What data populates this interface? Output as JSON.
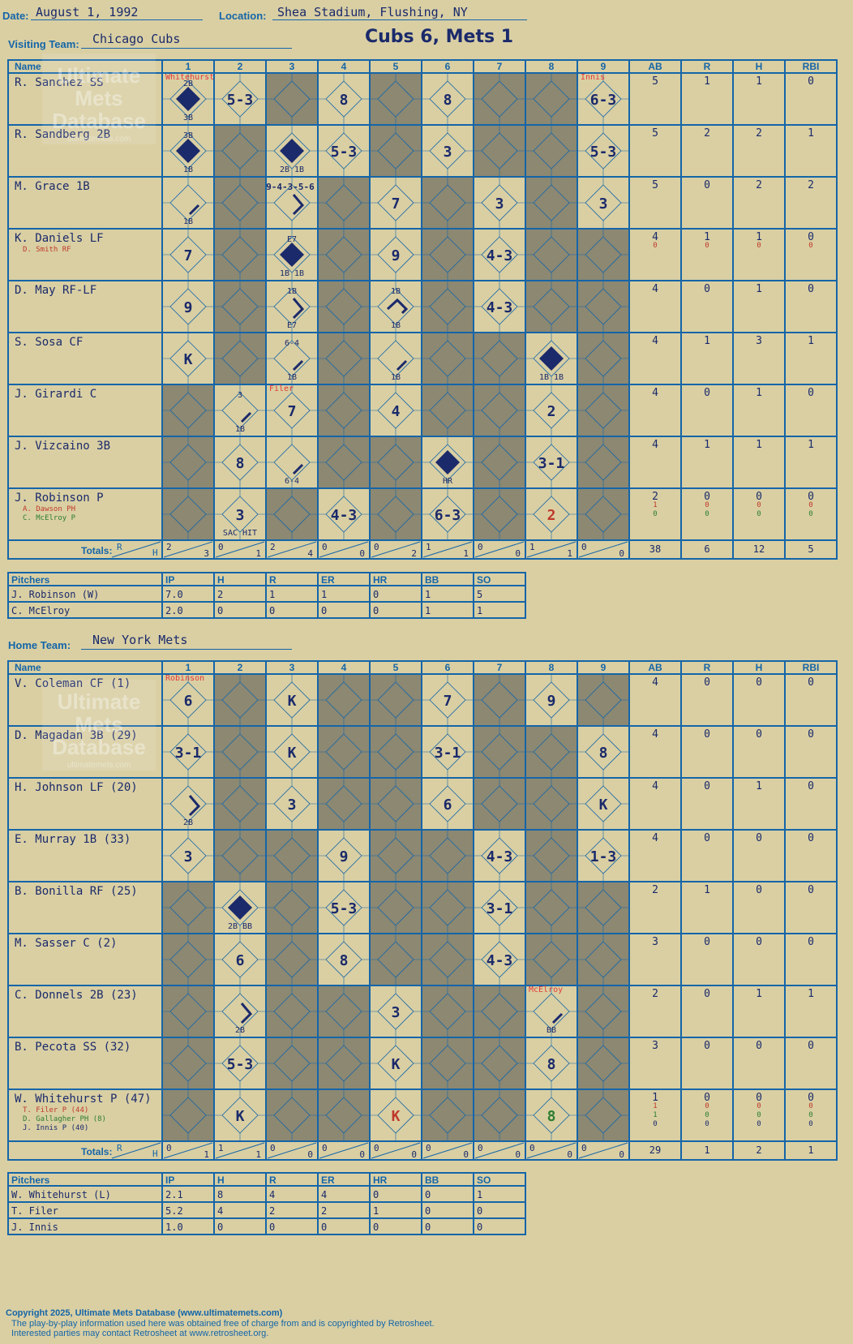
{
  "header": {
    "date_label": "Date:",
    "date": "August 1, 1992",
    "location_label": "Location:",
    "location": "Shea Stadium, Flushing, NY",
    "visiting_label": "Visiting Team:",
    "visiting_team": "Chicago Cubs",
    "home_label": "Home Team:",
    "home_team": "New York Mets",
    "result": "Cubs 6, Mets 1"
  },
  "watermark": [
    "Ultimate",
    "Mets",
    "Database",
    "ultimatemets.com"
  ],
  "grid_headers": [
    "Name",
    "1",
    "2",
    "3",
    "4",
    "5",
    "6",
    "7",
    "8",
    "9",
    "AB",
    "R",
    "H",
    "RBI"
  ],
  "totals_label": "Totals:",
  "totals_r": "R",
  "totals_h": "H",
  "pitcher_headers": [
    "Pitchers",
    "IP",
    "H",
    "R",
    "ER",
    "HR",
    "BB",
    "SO"
  ],
  "colors": {
    "bg": "#d9cfa3",
    "grid": "#1565a8",
    "shade": "#8c8872",
    "ink": "#1b2a6b",
    "red": "#c0392b",
    "green": "#2e7d32",
    "pitch_change": "#e53935"
  },
  "visitors": {
    "batters": [
      {
        "name": "R. Sanchez SS",
        "subs": [],
        "stats": [
          [
            "5",
            "1",
            "1",
            "0"
          ]
        ],
        "shade": [
          2,
          4,
          6,
          7
        ],
        "plays": [
          {
            "inn": 0,
            "type": "run",
            "tl": "",
            "note": "Whitehurst",
            "notes": [
              "2B",
              "3B"
            ]
          },
          {
            "inn": 1,
            "type": "out",
            "text": "5-3"
          },
          {
            "inn": 3,
            "type": "out",
            "text": "8"
          },
          {
            "inn": 5,
            "type": "out",
            "text": "8"
          },
          {
            "inn": 8,
            "type": "out",
            "text": "6-3",
            "note": "Innis"
          }
        ]
      },
      {
        "name": "R. Sandberg 2B",
        "subs": [],
        "stats": [
          [
            "5",
            "2",
            "2",
            "1"
          ]
        ],
        "shade": [
          1,
          4,
          6,
          7
        ],
        "plays": [
          {
            "inn": 0,
            "type": "run",
            "notes": [
              "3B",
              "1B"
            ]
          },
          {
            "inn": 2,
            "type": "run",
            "notes": [
              "2B 1B"
            ]
          },
          {
            "inn": 3,
            "type": "out",
            "text": "5-3"
          },
          {
            "inn": 5,
            "type": "out",
            "text": "3"
          },
          {
            "inn": 8,
            "type": "out",
            "text": "5-3"
          }
        ]
      },
      {
        "name": "M. Grace 1B",
        "subs": [],
        "stats": [
          [
            "5",
            "0",
            "2",
            "2"
          ]
        ],
        "shade": [
          1,
          3,
          5,
          7
        ],
        "plays": [
          {
            "inn": 0,
            "type": "hit1",
            "notes": [
              "1B"
            ]
          },
          {
            "inn": 2,
            "type": "hit2",
            "text": "9-4-3-5-6"
          },
          {
            "inn": 4,
            "type": "out",
            "text": "7"
          },
          {
            "inn": 6,
            "type": "out",
            "text": "3"
          },
          {
            "inn": 8,
            "type": "out",
            "text": "3"
          }
        ]
      },
      {
        "name": "K. Daniels LF",
        "subs": [
          {
            "name": "D. Smith RF",
            "color": "red"
          }
        ],
        "stats": [
          [
            "4",
            "1",
            "1",
            "0"
          ],
          [
            "0",
            "0",
            "0",
            "0"
          ]
        ],
        "shade": [
          1,
          3,
          5,
          7,
          8
        ],
        "plays": [
          {
            "inn": 0,
            "type": "out",
            "text": "7"
          },
          {
            "inn": 2,
            "type": "run",
            "notes": [
              "E7",
              "1B 1B"
            ]
          },
          {
            "inn": 4,
            "type": "out",
            "text": "9"
          },
          {
            "inn": 6,
            "type": "out",
            "text": "4-3"
          }
        ]
      },
      {
        "name": "D. May RF-LF",
        "subs": [],
        "stats": [
          [
            "4",
            "0",
            "1",
            "0"
          ]
        ],
        "shade": [
          1,
          3,
          5,
          7,
          8
        ],
        "plays": [
          {
            "inn": 0,
            "type": "out",
            "text": "9"
          },
          {
            "inn": 2,
            "type": "hit2",
            "notes": [
              "1B",
              "E7"
            ]
          },
          {
            "inn": 4,
            "type": "hit3",
            "notes": [
              "1B",
              "1B"
            ]
          },
          {
            "inn": 6,
            "type": "out",
            "text": "4-3"
          }
        ]
      },
      {
        "name": "S. Sosa CF",
        "subs": [],
        "stats": [
          [
            "4",
            "1",
            "3",
            "1"
          ]
        ],
        "shade": [
          1,
          3,
          5,
          6,
          8
        ],
        "plays": [
          {
            "inn": 0,
            "type": "out",
            "text": "K"
          },
          {
            "inn": 2,
            "type": "hit1",
            "notes": [
              "6-4",
              "1B"
            ]
          },
          {
            "inn": 4,
            "type": "hit1",
            "notes": [
              "1B"
            ]
          },
          {
            "inn": 7,
            "type": "run",
            "notes": [
              "1B 1B"
            ]
          }
        ]
      },
      {
        "name": "J. Girardi C",
        "subs": [],
        "stats": [
          [
            "4",
            "0",
            "1",
            "0"
          ]
        ],
        "shade": [
          0,
          3,
          5,
          6,
          8
        ],
        "plays": [
          {
            "inn": 1,
            "type": "hit1",
            "notes": [
              "3",
              "1B"
            ]
          },
          {
            "inn": 2,
            "type": "out",
            "text": "7",
            "note": "Filer"
          },
          {
            "inn": 4,
            "type": "out",
            "text": "4"
          },
          {
            "inn": 7,
            "type": "out",
            "text": "2"
          }
        ]
      },
      {
        "name": "J. Vizcaino 3B",
        "subs": [],
        "stats": [
          [
            "4",
            "1",
            "1",
            "1"
          ]
        ],
        "shade": [
          0,
          3,
          4,
          6,
          8
        ],
        "plays": [
          {
            "inn": 1,
            "type": "out",
            "text": "8"
          },
          {
            "inn": 2,
            "type": "hit1",
            "notes": [
              "6-4"
            ]
          },
          {
            "inn": 5,
            "type": "run",
            "notes": [
              "HR"
            ]
          },
          {
            "inn": 7,
            "type": "out",
            "text": "3-1"
          }
        ]
      },
      {
        "name": "J. Robinson P",
        "subs": [
          {
            "name": "A. Dawson PH",
            "color": "red"
          },
          {
            "name": "C. McElroy P",
            "color": "green"
          }
        ],
        "stats": [
          [
            "2",
            "0",
            "0",
            "0"
          ],
          [
            "1",
            "0",
            "0",
            "0"
          ],
          [
            "0",
            "0",
            "0",
            "0"
          ]
        ],
        "shade": [
          0,
          2,
          4,
          6,
          8
        ],
        "plays": [
          {
            "inn": 1,
            "type": "out",
            "text": "3",
            "notes": [
              "SAC HIT"
            ]
          },
          {
            "inn": 3,
            "type": "out",
            "text": "4-3"
          },
          {
            "inn": 5,
            "type": "out",
            "text": "6-3"
          },
          {
            "inn": 7,
            "type": "out",
            "text": "2",
            "color": "red"
          }
        ]
      }
    ],
    "totals": [
      [
        "2",
        "3"
      ],
      [
        "0",
        "1"
      ],
      [
        "2",
        "4"
      ],
      [
        "0",
        "0"
      ],
      [
        "0",
        "2"
      ],
      [
        "1",
        "1"
      ],
      [
        "0",
        "0"
      ],
      [
        "1",
        "1"
      ],
      [
        "0",
        "0"
      ]
    ],
    "totals_stats": [
      "38",
      "6",
      "12",
      "5"
    ],
    "pitchers": [
      [
        "J. Robinson (W)",
        "7.0",
        "2",
        "1",
        "1",
        "0",
        "1",
        "5"
      ],
      [
        "C. McElroy",
        "2.0",
        "0",
        "0",
        "0",
        "0",
        "1",
        "1"
      ]
    ]
  },
  "home": {
    "batters": [
      {
        "name": "V. Coleman CF (1)",
        "subs": [],
        "stats": [
          [
            "4",
            "0",
            "0",
            "0"
          ]
        ],
        "shade": [
          1,
          3,
          4,
          6,
          8
        ],
        "plays": [
          {
            "inn": 0,
            "type": "out",
            "text": "6",
            "note": "Robinson"
          },
          {
            "inn": 2,
            "type": "out",
            "text": "K"
          },
          {
            "inn": 5,
            "type": "out",
            "text": "7"
          },
          {
            "inn": 7,
            "type": "out",
            "text": "9"
          }
        ]
      },
      {
        "name": "D. Magadan 3B (29)",
        "subs": [],
        "stats": [
          [
            "4",
            "0",
            "0",
            "0"
          ]
        ],
        "shade": [
          1,
          3,
          4,
          6,
          7
        ],
        "plays": [
          {
            "inn": 0,
            "type": "out",
            "text": "3-1"
          },
          {
            "inn": 2,
            "type": "out",
            "text": "K"
          },
          {
            "inn": 5,
            "type": "out",
            "text": "3-1"
          },
          {
            "inn": 8,
            "type": "out",
            "text": "8"
          }
        ]
      },
      {
        "name": "H. Johnson LF (20)",
        "subs": [],
        "stats": [
          [
            "4",
            "0",
            "1",
            "0"
          ]
        ],
        "shade": [
          1,
          3,
          4,
          6,
          7
        ],
        "plays": [
          {
            "inn": 0,
            "type": "hit2",
            "notes": [
              "2B"
            ]
          },
          {
            "inn": 2,
            "type": "out",
            "text": "3"
          },
          {
            "inn": 5,
            "type": "out",
            "text": "6"
          },
          {
            "inn": 8,
            "type": "out",
            "text": "K"
          }
        ]
      },
      {
        "name": "E. Murray 1B (33)",
        "subs": [],
        "stats": [
          [
            "4",
            "0",
            "0",
            "0"
          ]
        ],
        "shade": [
          1,
          2,
          4,
          5,
          7
        ],
        "plays": [
          {
            "inn": 0,
            "type": "out",
            "text": "3"
          },
          {
            "inn": 3,
            "type": "out",
            "text": "9"
          },
          {
            "inn": 6,
            "type": "out",
            "text": "4-3"
          },
          {
            "inn": 8,
            "type": "out",
            "text": "1-3"
          }
        ]
      },
      {
        "name": "B. Bonilla RF (25)",
        "subs": [],
        "stats": [
          [
            "2",
            "1",
            "0",
            "0"
          ]
        ],
        "shade": [
          0,
          2,
          4,
          5,
          7,
          8
        ],
        "plays": [
          {
            "inn": 1,
            "type": "run",
            "notes": [
              "2B BB"
            ]
          },
          {
            "inn": 3,
            "type": "out",
            "text": "5-3"
          },
          {
            "inn": 6,
            "type": "out",
            "text": "3-1"
          }
        ]
      },
      {
        "name": "M. Sasser C (2)",
        "subs": [],
        "stats": [
          [
            "3",
            "0",
            "0",
            "0"
          ]
        ],
        "shade": [
          0,
          2,
          4,
          5,
          7,
          8
        ],
        "plays": [
          {
            "inn": 1,
            "type": "out",
            "text": "6"
          },
          {
            "inn": 3,
            "type": "out",
            "text": "8"
          },
          {
            "inn": 6,
            "type": "out",
            "text": "4-3"
          }
        ]
      },
      {
        "name": "C. Donnels 2B (23)",
        "subs": [],
        "stats": [
          [
            "2",
            "0",
            "1",
            "1"
          ]
        ],
        "shade": [
          0,
          2,
          3,
          5,
          6,
          8
        ],
        "plays": [
          {
            "inn": 1,
            "type": "hit2",
            "notes": [
              "2B"
            ]
          },
          {
            "inn": 4,
            "type": "out",
            "text": "3"
          },
          {
            "inn": 7,
            "type": "hit1",
            "notes": [
              "BB"
            ],
            "note": "McElroy"
          }
        ]
      },
      {
        "name": "B. Pecota SS (32)",
        "subs": [],
        "stats": [
          [
            "3",
            "0",
            "0",
            "0"
          ]
        ],
        "shade": [
          0,
          2,
          3,
          5,
          6,
          8
        ],
        "plays": [
          {
            "inn": 1,
            "type": "out",
            "text": "5-3"
          },
          {
            "inn": 4,
            "type": "out",
            "text": "K"
          },
          {
            "inn": 7,
            "type": "out",
            "text": "8"
          }
        ]
      },
      {
        "name": "W. Whitehurst P (47)",
        "subs": [
          {
            "name": "T. Filer P (44)",
            "color": "red"
          },
          {
            "name": "D. Gallagher PH (8)",
            "color": "green"
          },
          {
            "name": "J. Innis P (40)",
            "color": "ink"
          }
        ],
        "stats": [
          [
            "1",
            "0",
            "0",
            "0"
          ],
          [
            "1",
            "0",
            "0",
            "0"
          ],
          [
            "1",
            "0",
            "0",
            "0"
          ],
          [
            "0",
            "0",
            "0",
            "0"
          ]
        ],
        "shade": [
          0,
          2,
          3,
          5,
          6,
          8
        ],
        "plays": [
          {
            "inn": 1,
            "type": "out",
            "text": "K"
          },
          {
            "inn": 4,
            "type": "out",
            "text": "K",
            "color": "red"
          },
          {
            "inn": 7,
            "type": "out",
            "text": "8",
            "color": "green"
          }
        ]
      }
    ],
    "totals": [
      [
        "0",
        "1"
      ],
      [
        "1",
        "1"
      ],
      [
        "0",
        "0"
      ],
      [
        "0",
        "0"
      ],
      [
        "0",
        "0"
      ],
      [
        "0",
        "0"
      ],
      [
        "0",
        "0"
      ],
      [
        "0",
        "0"
      ],
      [
        "0",
        "0"
      ]
    ],
    "totals_stats": [
      "29",
      "1",
      "2",
      "1"
    ],
    "pitchers": [
      [
        "W. Whitehurst (L)",
        "2.1",
        "8",
        "4",
        "4",
        "0",
        "0",
        "1"
      ],
      [
        "T. Filer",
        "5.2",
        "4",
        "2",
        "2",
        "1",
        "0",
        "0"
      ],
      [
        "J. Innis",
        "1.0",
        "0",
        "0",
        "0",
        "0",
        "0",
        "0"
      ]
    ]
  },
  "footer": [
    "Copyright 2025, Ultimate Mets Database (www.ultimatemets.com)",
    "The play-by-play information used here was obtained free of charge from and is copyrighted by Retrosheet.",
    "Interested parties may contact Retrosheet at www.retrosheet.org."
  ]
}
